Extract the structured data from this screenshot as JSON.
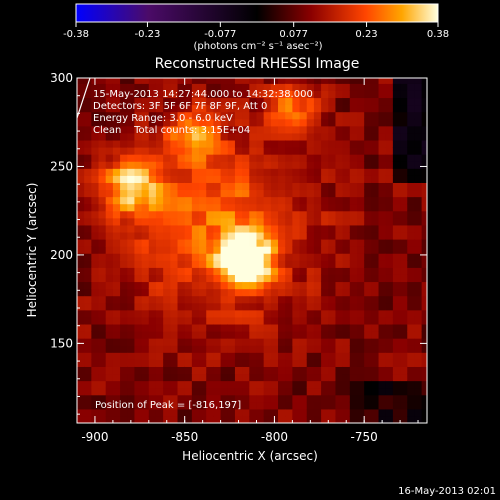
{
  "chart_data": {
    "type": "heatmap",
    "title": "Reconstructed RHESSI Image",
    "xlabel": "Heliocentric X (arcsec)",
    "ylabel": "Heliocentric Y (arcsec)",
    "xlim": [
      -910,
      -715
    ],
    "ylim": [
      105,
      300
    ],
    "x_ticks": [
      -900,
      -850,
      -800,
      -750
    ],
    "y_ticks": [
      150,
      200,
      250,
      300
    ],
    "x_tick_labels": [
      "-900",
      "-850",
      "-800",
      "-750"
    ],
    "y_tick_labels": [
      "150",
      "200",
      "250",
      "300"
    ],
    "colorbar": {
      "min": -0.38,
      "max": 0.38,
      "tick_values": [
        -0.38,
        -0.23,
        -0.077,
        0.077,
        0.23,
        0.38
      ],
      "tick_labels": [
        "-0.38",
        "-0.23",
        "-0.077",
        "0.077",
        "0.23",
        "0.38"
      ],
      "unit_label": "(photons cm⁻² s⁻¹ asec⁻²)",
      "colors": [
        "#0000ff",
        "#4b0b68",
        "#000000",
        "#8b0000",
        "#ff4500",
        "#ffa500",
        "#ffffe0"
      ]
    },
    "sources": [
      {
        "x": -816,
        "y": 197,
        "amplitude": 0.38,
        "sigma": 9
      },
      {
        "x": -880,
        "y": 240,
        "amplitude": 0.22,
        "sigma": 12
      },
      {
        "x": -845,
        "y": 268,
        "amplitude": 0.15,
        "sigma": 10
      },
      {
        "x": -790,
        "y": 285,
        "amplitude": 0.14,
        "sigma": 10
      },
      {
        "x": -830,
        "y": 215,
        "amplitude": 0.16,
        "sigma": 35
      }
    ],
    "annotations": {
      "time_range": "15-May-2013 14:27:44.000 to 14:32:38.000",
      "detectors": "Detectors: 3F 5F 6F 7F 8F 9F, Att 0",
      "energy": "Energy Range: 3.0 - 6.0 keV",
      "clean": "Clean    Total counts: 3.15E+04",
      "peak": "Position of Peak = [-816,197]"
    },
    "footer_date": "16-May-2013 02:01"
  }
}
